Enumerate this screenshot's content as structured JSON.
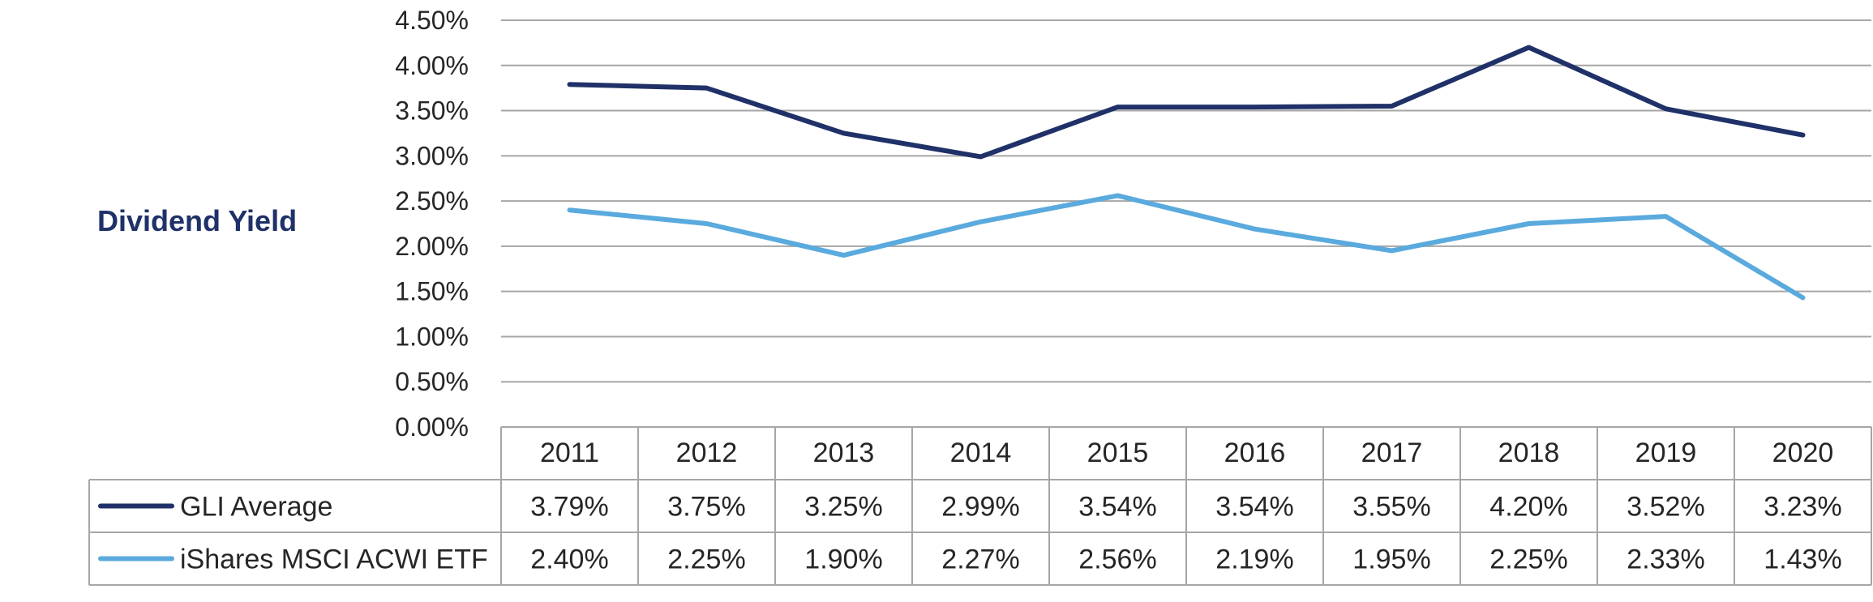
{
  "chart_data": {
    "type": "line",
    "title": "Dividend Yield",
    "x": [
      "2011",
      "2012",
      "2013",
      "2014",
      "2015",
      "2016",
      "2017",
      "2018",
      "2019",
      "2020"
    ],
    "series": [
      {
        "name": "GLI Average",
        "color": "#1f3168",
        "values": [
          3.79,
          3.75,
          3.25,
          2.99,
          3.54,
          3.54,
          3.55,
          4.2,
          3.52,
          3.23
        ],
        "labels": [
          "3.79%",
          "3.75%",
          "3.25%",
          "2.99%",
          "3.54%",
          "3.54%",
          "3.55%",
          "4.20%",
          "3.52%",
          "3.23%"
        ]
      },
      {
        "name": "iShares MSCI ACWI ETF",
        "color": "#5aaade",
        "values": [
          2.4,
          2.25,
          1.9,
          2.27,
          2.56,
          2.19,
          1.95,
          2.25,
          2.33,
          1.43
        ],
        "labels": [
          "2.40%",
          "2.25%",
          "1.90%",
          "2.27%",
          "2.56%",
          "2.19%",
          "1.95%",
          "2.25%",
          "2.33%",
          "1.43%"
        ]
      }
    ],
    "ylim": [
      0,
      4.5
    ],
    "yticks": [
      0,
      0.5,
      1.0,
      1.5,
      2.0,
      2.5,
      3.0,
      3.5,
      4.0,
      4.5
    ],
    "ytick_labels": [
      "0.00%",
      "0.50%",
      "1.00%",
      "1.50%",
      "2.00%",
      "2.50%",
      "3.00%",
      "3.50%",
      "4.00%",
      "4.50%"
    ],
    "grid": true,
    "data_table": true
  }
}
